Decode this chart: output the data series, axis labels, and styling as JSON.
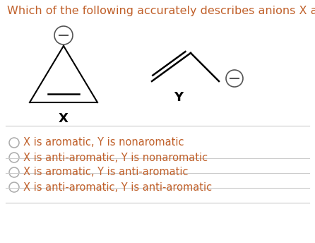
{
  "title": "Which of the following accurately describes anions X and Y?",
  "title_color": "#c0602a",
  "title_fontsize": 11.5,
  "background_color": "#ffffff",
  "options": [
    "X is aromatic, Y is nonaromatic",
    "X is anti-aromatic, Y is nonaromatic",
    "X is aromatic, Y is anti-aromatic",
    "X is anti-aromatic, Y is anti-aromatic"
  ],
  "option_color": "#c0602a",
  "option_fontsize": 10.5,
  "label_x": "X",
  "label_y": "Y",
  "label_fontsize": 13,
  "divider_color": "#cccccc",
  "structure_color": "#000000",
  "circle_edge_color": "#555555"
}
